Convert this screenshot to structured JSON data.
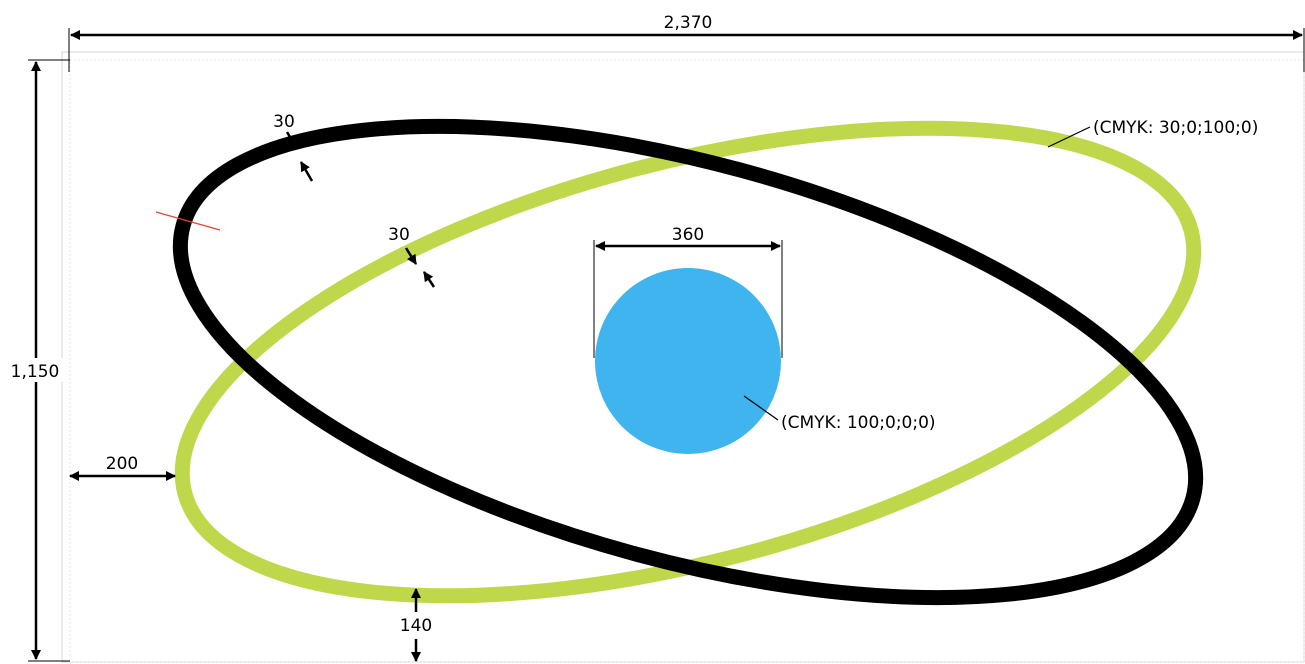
{
  "dimensions": {
    "overall_width": "2,370",
    "overall_height": "1,150",
    "black_stroke_width": "30",
    "green_stroke_width": "30",
    "circle_diameter": "360",
    "left_offset": "200",
    "bottom_offset": "140"
  },
  "callouts": {
    "green_color_spec": "(CMYK: 30;0;100;0)",
    "blue_color_spec": "(CMYK: 100;0;0;0)"
  },
  "colors": {
    "black_ring": "#000000",
    "green_ring": "#bfd84b",
    "blue_circle": "#3fb4ef",
    "dimension_line": "#000000",
    "guide_line": "#cccccc",
    "mark_red": "#e0433a"
  }
}
